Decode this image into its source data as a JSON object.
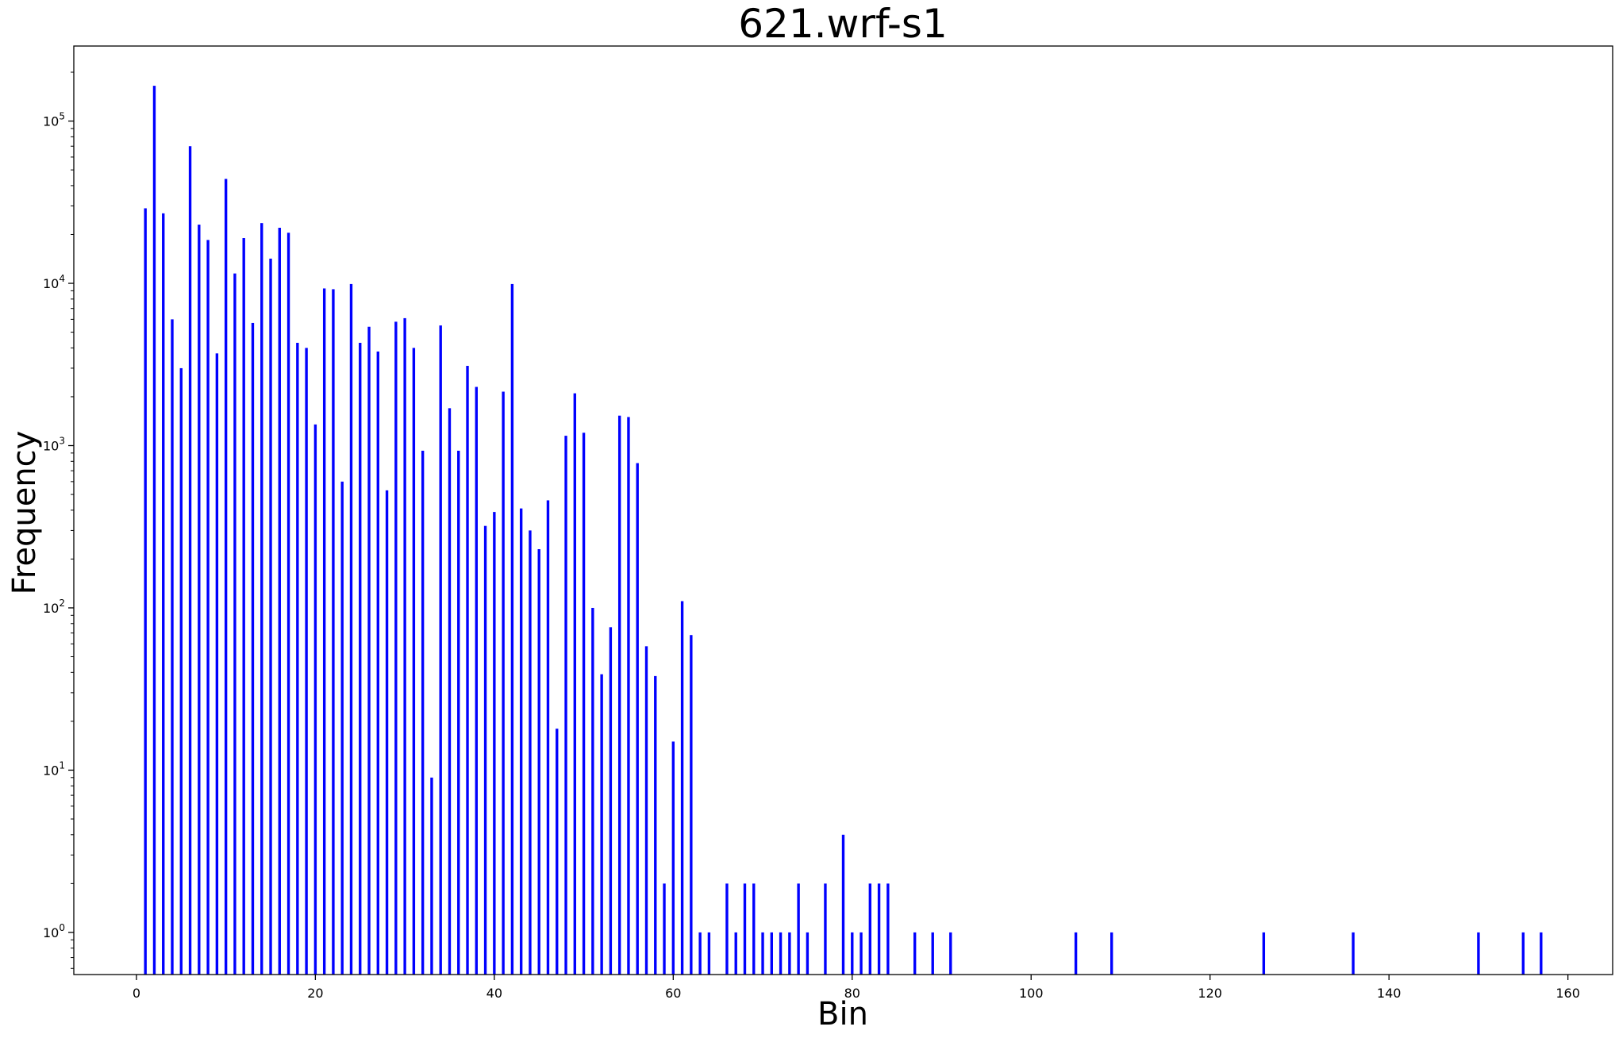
{
  "chart_data": {
    "type": "bar",
    "title": "621.wrf-s1",
    "xlabel": "Bin",
    "ylabel": "Frequency",
    "yscale": "log",
    "xlim": [
      -7,
      165
    ],
    "ylim": [
      0.55,
      290000
    ],
    "grid": false,
    "legend": "none",
    "bar_color": "#0000ff",
    "xticks": [
      0,
      20,
      40,
      60,
      80,
      100,
      120,
      140,
      160
    ],
    "yticks": [
      {
        "value": 1,
        "base": "10",
        "exp": "0"
      },
      {
        "value": 10,
        "base": "10",
        "exp": "1"
      },
      {
        "value": 100,
        "base": "10",
        "exp": "2"
      },
      {
        "value": 1000,
        "base": "10",
        "exp": "3"
      },
      {
        "value": 10000,
        "base": "10",
        "exp": "4"
      },
      {
        "value": 100000,
        "base": "10",
        "exp": "5"
      }
    ],
    "series": [
      {
        "x": [
          1,
          2,
          3,
          4,
          5,
          6,
          7,
          8,
          9,
          10,
          11,
          12,
          13,
          14,
          15,
          16,
          17,
          18,
          19,
          20,
          21,
          22,
          23,
          24,
          25,
          26,
          27,
          28,
          29,
          30,
          31,
          32,
          33,
          34,
          35,
          36,
          37,
          38,
          39,
          40,
          41,
          42,
          43,
          44,
          45,
          46,
          47,
          48,
          49,
          50,
          51,
          52,
          53,
          54,
          55,
          56,
          57,
          58,
          59,
          60,
          61,
          62,
          63,
          64,
          66,
          67,
          68,
          69,
          70,
          71,
          72,
          73,
          74,
          75,
          77,
          79,
          80,
          81,
          82,
          83,
          84,
          87,
          89,
          91,
          105,
          109,
          126,
          136,
          150,
          155,
          157
        ],
        "values": [
          29000,
          165000,
          27000,
          6000,
          3000,
          70000,
          23000,
          18500,
          3700,
          44000,
          11500,
          19000,
          5700,
          23500,
          14200,
          22000,
          20500,
          4300,
          4000,
          1350,
          9300,
          9200,
          600,
          9900,
          4300,
          5400,
          3800,
          530,
          5800,
          6100,
          4000,
          930,
          9,
          5500,
          1700,
          930,
          3100,
          2300,
          320,
          390,
          2150,
          9900,
          410,
          300,
          230,
          460,
          18,
          1150,
          2100,
          1200,
          100,
          39,
          76,
          1530,
          1500,
          780,
          58,
          38,
          2,
          15,
          110,
          68,
          1,
          1,
          2,
          1,
          2,
          2,
          1,
          1,
          1,
          1,
          2,
          1,
          2,
          4,
          1,
          1,
          2,
          2,
          2,
          1,
          1,
          1,
          1,
          1,
          1,
          1,
          1,
          1,
          1
        ]
      }
    ]
  }
}
